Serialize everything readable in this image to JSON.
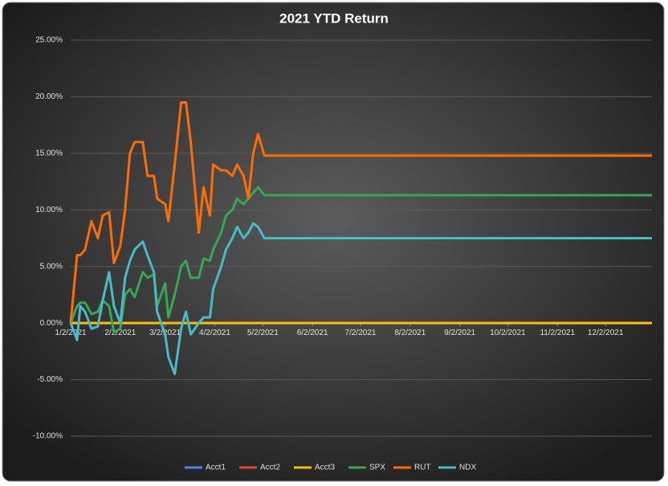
{
  "chart_data": {
    "type": "line",
    "title": "2021 YTD Return",
    "x": [
      "1/2/2021",
      "1/6/2021",
      "1/8/2021",
      "1/11/2021",
      "1/15/2021",
      "1/19/2021",
      "1/22/2021",
      "1/26/2021",
      "1/29/2021",
      "2/2/2021",
      "2/5/2021",
      "2/8/2021",
      "2/11/2021",
      "2/16/2021",
      "2/19/2021",
      "2/23/2021",
      "2/25/2021",
      "3/2/2021",
      "3/4/2021",
      "3/8/2021",
      "3/12/2021",
      "3/15/2021",
      "3/18/2021",
      "3/23/2021",
      "3/26/2021",
      "3/30/2021",
      "4/1/2021",
      "4/6/2021",
      "4/9/2021",
      "4/13/2021",
      "4/16/2021",
      "4/20/2021",
      "4/23/2021",
      "4/26/2021",
      "4/29/2021",
      "5/3/2021",
      "12/31/2021"
    ],
    "xlim": [
      "1/2/2021",
      "12/31/2021"
    ],
    "xticks": [
      "1/2/2021",
      "2/2/2021",
      "3/2/2021",
      "4/2/2021",
      "5/2/2021",
      "6/2/2021",
      "7/2/2021",
      "8/2/2021",
      "9/2/2021",
      "10/2/2021",
      "11/2/2021",
      "12/2/2021"
    ],
    "ylim": [
      -10,
      25
    ],
    "yticks": [
      {
        "value": -10,
        "label": "-10.00%"
      },
      {
        "value": -5,
        "label": "-5.00%"
      },
      {
        "value": 0,
        "label": "0.00%"
      },
      {
        "value": 5,
        "label": "5.00%"
      },
      {
        "value": 10,
        "label": "10.00%"
      },
      {
        "value": 15,
        "label": "15.00%"
      },
      {
        "value": 20,
        "label": "20.00%"
      },
      {
        "value": 25,
        "label": "25.00%"
      }
    ],
    "grid": true,
    "legend": "bottom",
    "series": [
      {
        "name": "Acct1",
        "color": "#4a86e8",
        "values": [
          0,
          0,
          0,
          0,
          0,
          0,
          0,
          0,
          0,
          0,
          0,
          0,
          0,
          0,
          0,
          0,
          0,
          0,
          0,
          0,
          0,
          0,
          0,
          0,
          0,
          0,
          0,
          0,
          0,
          0,
          0,
          0,
          0,
          0,
          0,
          0,
          0
        ]
      },
      {
        "name": "Acct2",
        "color": "#ea4335",
        "values": [
          0,
          0,
          0,
          0,
          0,
          0,
          0,
          0,
          0,
          0,
          0,
          0,
          0,
          0,
          0,
          0,
          0,
          0,
          0,
          0,
          0,
          0,
          0,
          0,
          0,
          0,
          0,
          0,
          0,
          0,
          0,
          0,
          0,
          0,
          0,
          0,
          0
        ]
      },
      {
        "name": "Acct3",
        "color": "#fbbc04",
        "values": [
          0,
          0,
          0,
          0,
          0,
          0,
          0,
          0,
          0,
          0,
          0,
          0,
          0,
          0,
          0,
          0,
          0,
          0,
          0,
          0,
          0,
          0,
          0,
          0,
          0,
          0,
          0,
          0,
          0,
          0,
          0,
          0,
          0,
          0,
          0,
          0,
          0
        ]
      },
      {
        "name": "SPX",
        "color": "#34a853",
        "values": [
          0,
          1.5,
          1.8,
          1.8,
          0.8,
          1,
          2,
          1.5,
          -0.8,
          -0.5,
          2.5,
          3,
          2.3,
          4.5,
          4,
          4.3,
          1.5,
          3.5,
          0.5,
          2.5,
          5,
          5.5,
          4,
          4,
          5.7,
          5.5,
          6.5,
          8,
          9.5,
          10,
          11,
          10.5,
          11,
          11.5,
          12,
          11.3,
          11.3
        ]
      },
      {
        "name": "RUT",
        "color": "#ff6d01",
        "values": [
          0,
          6,
          6,
          6.5,
          9,
          7.5,
          9.5,
          9.8,
          5.3,
          6.8,
          10,
          15,
          16,
          16,
          13,
          13,
          11,
          10.5,
          9,
          14,
          19.5,
          19.5,
          16,
          8,
          12,
          9.5,
          14,
          13.5,
          13.5,
          13,
          14,
          13,
          11,
          15,
          16.7,
          14.8,
          14.8
        ]
      },
      {
        "name": "NDX",
        "color": "#46bdc6",
        "values": [
          0,
          -1.5,
          1.5,
          1,
          -0.5,
          -0.3,
          2,
          4.5,
          1.5,
          0,
          4,
          5.5,
          6.5,
          7.2,
          6,
          4.5,
          1,
          -1,
          -3,
          -4.5,
          -0.5,
          1,
          -1,
          0,
          0.5,
          0.5,
          3,
          5,
          6.5,
          7.5,
          8.5,
          7.5,
          8,
          8.8,
          8.5,
          7.5,
          7.5
        ]
      }
    ]
  }
}
